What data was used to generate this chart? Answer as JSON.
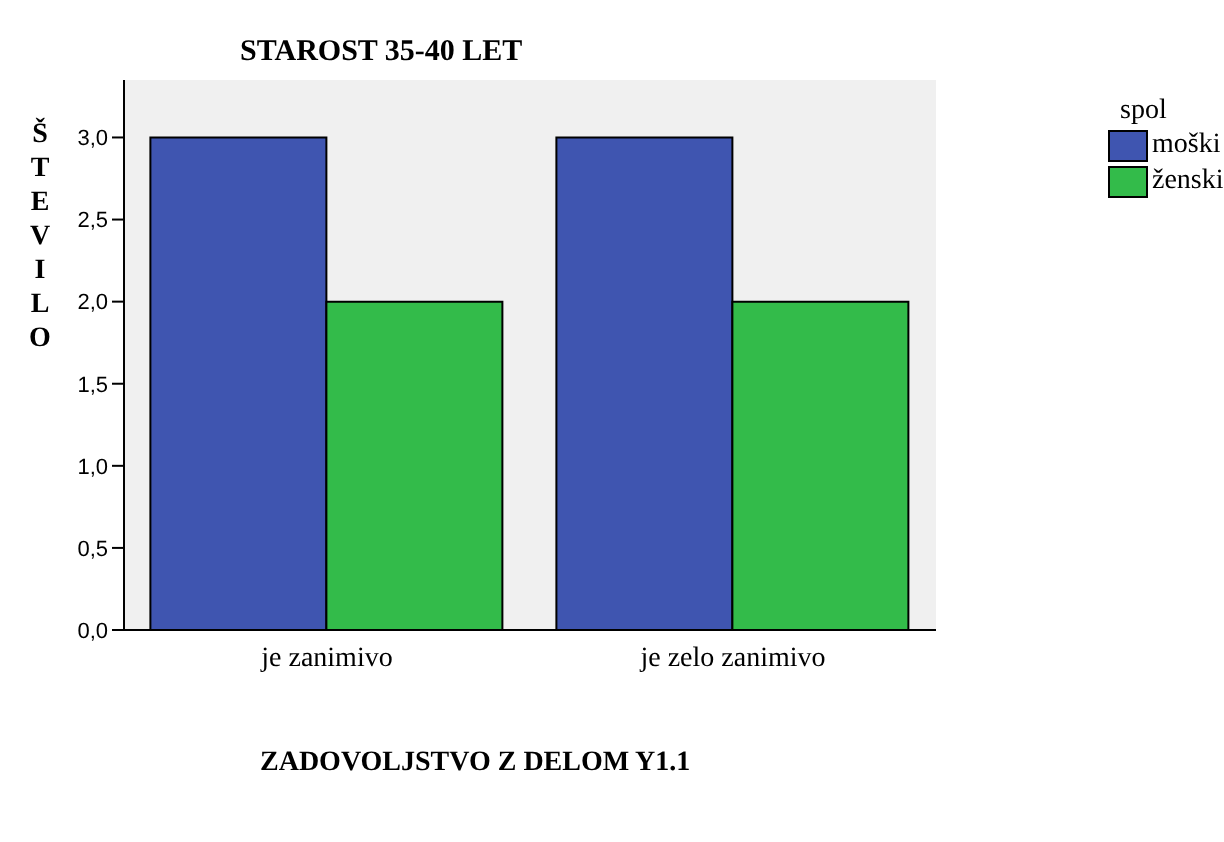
{
  "chart_data": {
    "type": "bar",
    "title": "STAROST 35-40 LET",
    "xlabel": "ZADOVOLJSTVO Z DELOM Y1.1",
    "ylabel": "ŠTEVILO",
    "legend_title": "spol",
    "categories": [
      "je zanimivo",
      "je zelo zanimivo"
    ],
    "series": [
      {
        "name": "moški",
        "color": "#3f55b0",
        "values": [
          3,
          3
        ]
      },
      {
        "name": "ženski",
        "color": "#33bb4a",
        "values": [
          2,
          2
        ]
      }
    ],
    "ylim": [
      0,
      3.35
    ],
    "yticks": [
      {
        "value": 0,
        "label": "0,0"
      },
      {
        "value": 0.5,
        "label": "0,5"
      },
      {
        "value": 1,
        "label": "1,0"
      },
      {
        "value": 1.5,
        "label": "1,5"
      },
      {
        "value": 2,
        "label": "2,0"
      },
      {
        "value": 2.5,
        "label": "2,5"
      },
      {
        "value": 3,
        "label": "3,0"
      }
    ],
    "grid": false,
    "legend": "top right"
  }
}
